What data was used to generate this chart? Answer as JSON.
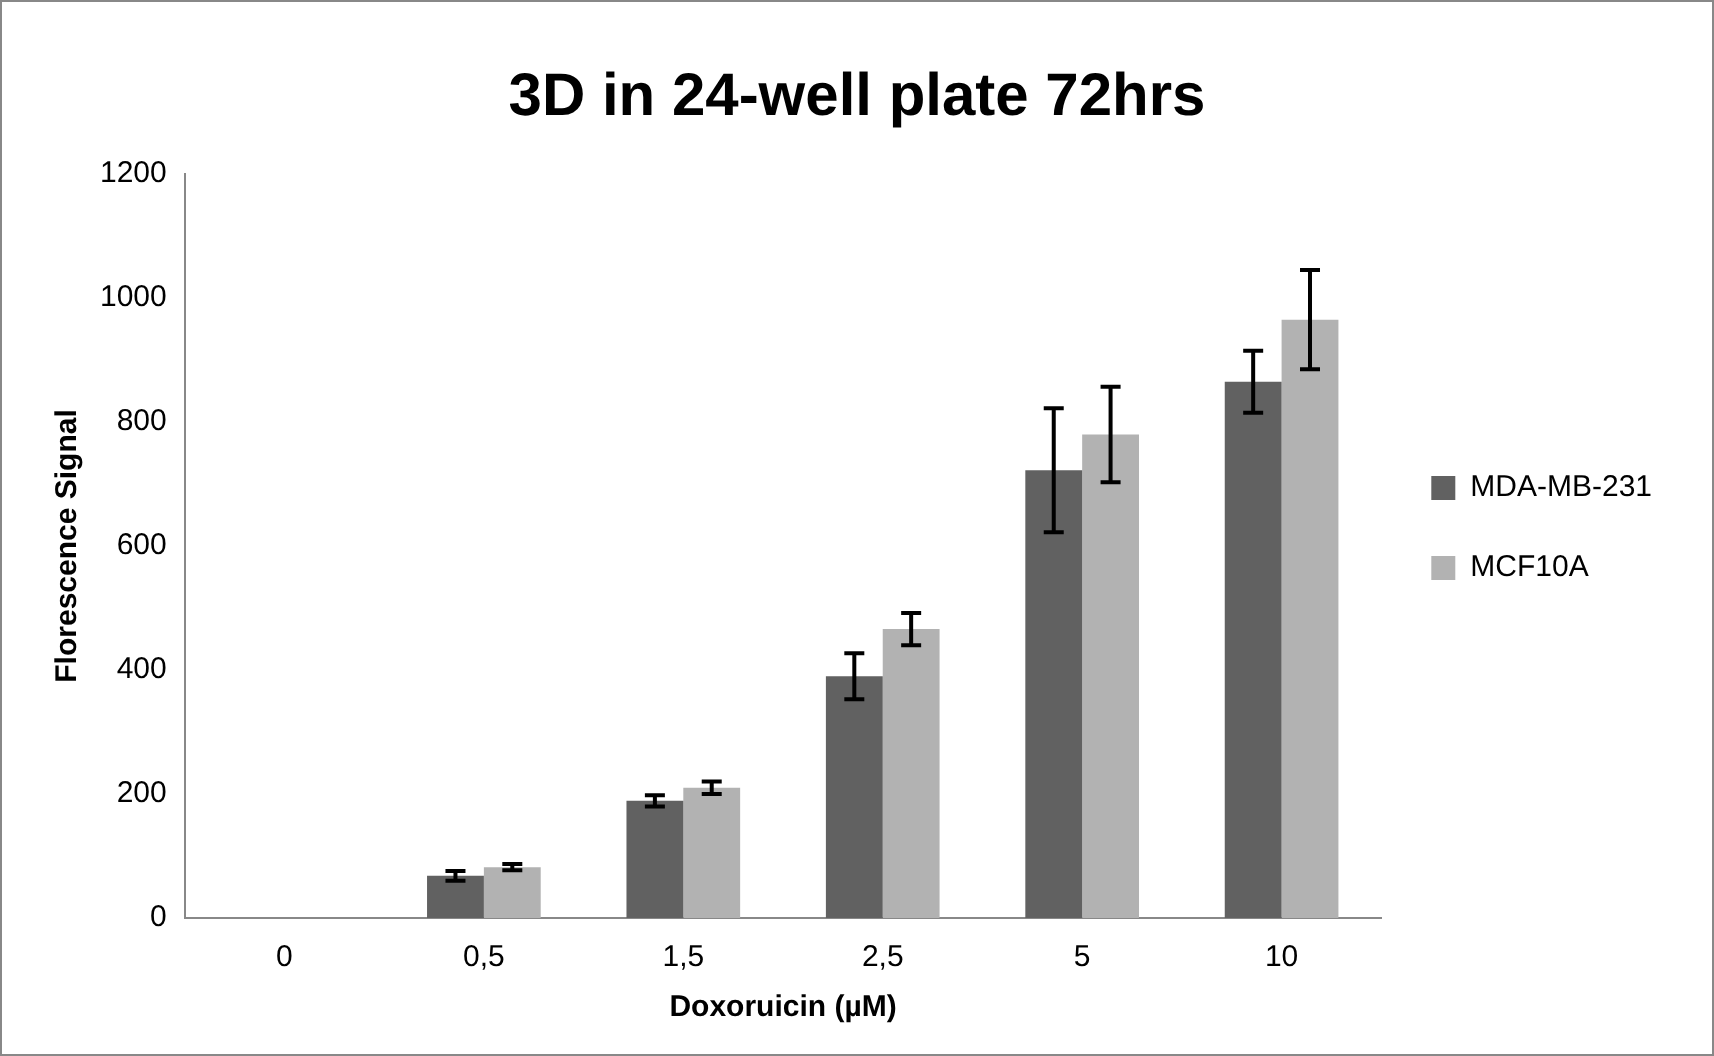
{
  "chart_data": {
    "type": "bar",
    "title": "3D in 24-well plate 72hrs",
    "xlabel": "Doxoruicin (µM)",
    "ylabel": "Florescence Signal",
    "categories": [
      "0",
      "0,5",
      "1,5",
      "2,5",
      "5",
      "10"
    ],
    "series": [
      {
        "name": "MDA-MB-231",
        "color": "#616161",
        "values": [
          0,
          68,
          189,
          390,
          722,
          865
        ],
        "errors": [
          null,
          8,
          9,
          37,
          100,
          50
        ]
      },
      {
        "name": "MCF10A",
        "color": "#b2b2b2",
        "values": [
          0,
          82,
          210,
          466,
          780,
          965
        ],
        "errors": [
          null,
          5,
          10,
          26,
          77,
          80
        ]
      }
    ],
    "ylim": [
      0,
      1200
    ],
    "yticks": [
      0,
      200,
      400,
      600,
      800,
      1000,
      1200
    ],
    "grid": false,
    "legend": "right"
  }
}
